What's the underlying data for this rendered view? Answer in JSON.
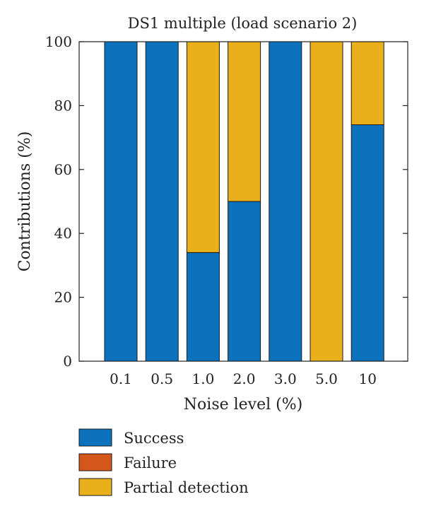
{
  "chart_data": {
    "type": "bar",
    "stacked": true,
    "title": "DS1 multiple (load scenario 2)",
    "xlabel": "Noise level (%)",
    "ylabel": "Contributions (%)",
    "ylim": [
      0,
      100
    ],
    "yticks": [
      0,
      20,
      40,
      60,
      80,
      100
    ],
    "categories": [
      "0.1",
      "0.5",
      "1.0",
      "2.0",
      "3.0",
      "5.0",
      "10"
    ],
    "series": [
      {
        "name": "Success",
        "color": "#0c72bd",
        "values": [
          100,
          100,
          34,
          50,
          100,
          0,
          74
        ]
      },
      {
        "name": "Failure",
        "color": "#d4561a",
        "values": [
          0,
          0,
          0,
          0,
          0,
          0,
          0
        ]
      },
      {
        "name": "Partial detection",
        "color": "#e9b01b",
        "values": [
          0,
          0,
          66,
          50,
          0,
          100,
          26
        ]
      }
    ],
    "legend_position": "bottom-left",
    "grid": false
  }
}
